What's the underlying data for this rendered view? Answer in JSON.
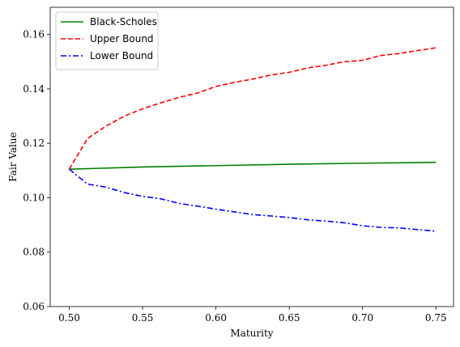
{
  "chart_data": {
    "type": "line",
    "title": "",
    "xlabel": "Maturity",
    "ylabel": "Fair Value",
    "xlim": [
      0.487,
      0.762
    ],
    "ylim": [
      0.06,
      0.17
    ],
    "xticks": [
      0.5,
      0.55,
      0.6,
      0.65,
      0.7,
      0.75
    ],
    "xtick_labels": [
      "0.50",
      "0.55",
      "0.60",
      "0.65",
      "0.70",
      "0.75"
    ],
    "yticks": [
      0.06,
      0.08,
      0.1,
      0.12,
      0.14,
      0.16
    ],
    "ytick_labels": [
      "0.06",
      "0.08",
      "0.10",
      "0.12",
      "0.14",
      "0.16"
    ],
    "grid": false,
    "legend_position": "top-left",
    "series": [
      {
        "name": "Black-Scholes",
        "color": "#008000",
        "dash": "solid",
        "x": [
          0.5,
          0.55,
          0.6,
          0.65,
          0.7,
          0.75
        ],
        "y": [
          0.1105,
          0.1113,
          0.1118,
          0.1123,
          0.1127,
          0.113
        ]
      },
      {
        "name": "Upper Bound",
        "color": "#ff0000",
        "dash": "dashed",
        "x": [
          0.5,
          0.5125,
          0.525,
          0.5375,
          0.55,
          0.5625,
          0.575,
          0.5875,
          0.6,
          0.6125,
          0.625,
          0.6375,
          0.65,
          0.6625,
          0.675,
          0.6875,
          0.7,
          0.7125,
          0.725,
          0.7375,
          0.75
        ],
        "y": [
          0.1105,
          0.1218,
          0.1263,
          0.13,
          0.1327,
          0.1349,
          0.1369,
          0.1385,
          0.1409,
          0.1424,
          0.1436,
          0.1451,
          0.1461,
          0.1477,
          0.1487,
          0.15,
          0.1505,
          0.1523,
          0.153,
          0.1541,
          0.1551
        ]
      },
      {
        "name": "Lower Bound",
        "color": "#0000ff",
        "dash": "dashdot",
        "x": [
          0.5,
          0.5125,
          0.525,
          0.5375,
          0.55,
          0.5625,
          0.575,
          0.5875,
          0.6,
          0.6125,
          0.625,
          0.6375,
          0.65,
          0.6625,
          0.675,
          0.6875,
          0.7,
          0.7125,
          0.725,
          0.7375,
          0.75
        ],
        "y": [
          0.1105,
          0.105,
          0.1039,
          0.1019,
          0.1005,
          0.0996,
          0.0979,
          0.0969,
          0.0958,
          0.0948,
          0.0938,
          0.0933,
          0.0927,
          0.0919,
          0.0914,
          0.0908,
          0.0897,
          0.0891,
          0.0889,
          0.0883,
          0.0877
        ]
      }
    ]
  }
}
